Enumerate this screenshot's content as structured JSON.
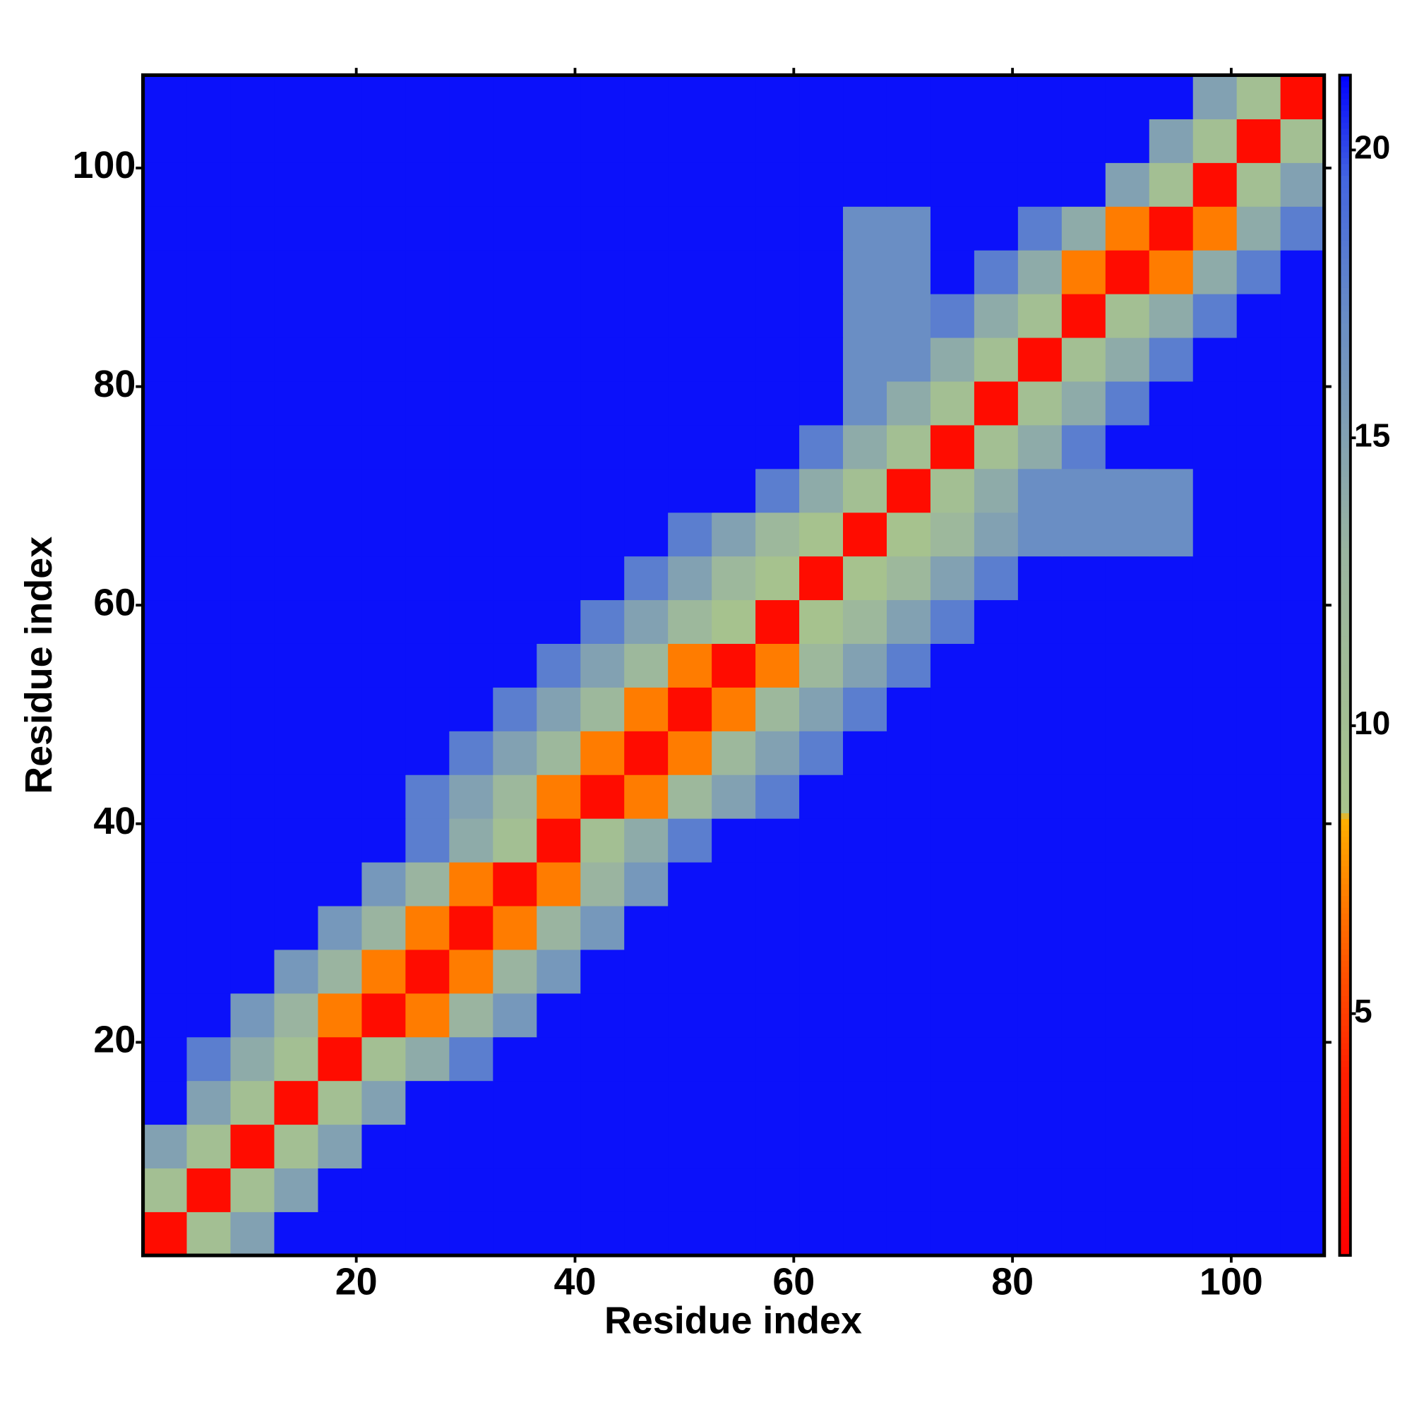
{
  "chart_data": {
    "type": "heatmap",
    "x_label": "Residue index",
    "y_label": "Residue index",
    "x": [
      2.5,
      6.5,
      10.5,
      14.5,
      18.5,
      22.5,
      26.5,
      30.5,
      34.5,
      38.5,
      42.5,
      46.5,
      50.5,
      54.5,
      58.5,
      62.5,
      66.5,
      70.5,
      74.5,
      78.5,
      82.5,
      86.5,
      90.5,
      94.5,
      98.5,
      102.5,
      106.5
    ],
    "y": [
      2.5,
      6.5,
      10.5,
      14.5,
      18.5,
      22.5,
      26.5,
      30.5,
      34.5,
      38.5,
      42.5,
      46.5,
      50.5,
      54.5,
      58.5,
      62.5,
      66.5,
      70.5,
      74.5,
      78.5,
      82.5,
      86.5,
      90.5,
      94.5,
      98.5,
      102.5,
      106.5
    ],
    "z": [
      [
        2,
        10,
        15,
        21,
        21,
        21,
        21,
        21,
        21,
        21,
        21,
        21,
        21,
        21,
        21,
        21,
        21,
        21,
        21,
        21,
        21,
        21,
        21,
        21,
        21,
        21,
        21
      ],
      [
        10,
        2,
        10,
        15,
        21,
        21,
        21,
        21,
        21,
        21,
        21,
        21,
        21,
        21,
        21,
        21,
        21,
        21,
        21,
        21,
        21,
        21,
        21,
        21,
        21,
        21,
        21
      ],
      [
        15,
        10,
        2,
        10,
        15,
        21,
        21,
        21,
        21,
        21,
        21,
        21,
        21,
        21,
        21,
        21,
        21,
        21,
        21,
        21,
        21,
        21,
        21,
        21,
        21,
        21,
        21
      ],
      [
        21,
        15,
        10,
        2,
        10,
        15,
        21,
        21,
        21,
        21,
        21,
        21,
        21,
        21,
        21,
        21,
        21,
        21,
        21,
        21,
        21,
        21,
        21,
        21,
        21,
        21,
        21
      ],
      [
        21,
        18,
        14,
        10,
        2,
        10,
        14,
        18,
        21,
        21,
        21,
        21,
        21,
        21,
        21,
        21,
        21,
        21,
        21,
        21,
        21,
        21,
        21,
        21,
        21,
        21,
        21
      ],
      [
        21,
        21,
        16,
        13,
        7,
        2,
        7,
        13,
        16,
        21,
        21,
        21,
        21,
        21,
        21,
        21,
        21,
        21,
        21,
        21,
        21,
        21,
        21,
        21,
        21,
        21,
        21
      ],
      [
        21,
        21,
        21,
        16,
        13,
        7,
        2,
        7,
        13,
        16,
        21,
        21,
        21,
        21,
        21,
        21,
        21,
        21,
        21,
        21,
        21,
        21,
        21,
        21,
        21,
        21,
        21
      ],
      [
        21,
        21,
        21,
        21,
        16,
        13,
        7,
        2,
        7,
        13,
        16,
        21,
        21,
        21,
        21,
        21,
        21,
        21,
        21,
        21,
        21,
        21,
        21,
        21,
        21,
        21,
        21
      ],
      [
        21,
        21,
        21,
        21,
        21,
        16,
        13,
        7,
        2,
        7,
        13,
        16,
        21,
        21,
        21,
        21,
        21,
        21,
        21,
        21,
        21,
        21,
        21,
        21,
        21,
        21,
        21
      ],
      [
        21,
        21,
        21,
        21,
        21,
        21,
        18,
        14,
        10,
        2,
        10,
        14,
        18,
        21,
        21,
        21,
        21,
        21,
        21,
        21,
        21,
        21,
        21,
        21,
        21,
        21,
        21
      ],
      [
        21,
        21,
        21,
        21,
        21,
        21,
        18,
        15,
        12,
        7,
        2,
        7,
        12,
        15,
        18,
        21,
        21,
        21,
        21,
        21,
        21,
        21,
        21,
        21,
        21,
        21,
        21
      ],
      [
        21,
        21,
        21,
        21,
        21,
        21,
        21,
        18,
        15,
        12,
        7,
        2,
        7,
        12,
        15,
        18,
        21,
        21,
        21,
        21,
        21,
        21,
        21,
        21,
        21,
        21,
        21
      ],
      [
        21,
        21,
        21,
        21,
        21,
        21,
        21,
        21,
        18,
        15,
        12,
        7,
        2,
        7,
        12,
        15,
        18,
        21,
        21,
        21,
        21,
        21,
        21,
        21,
        21,
        21,
        21
      ],
      [
        21,
        21,
        21,
        21,
        21,
        21,
        21,
        21,
        21,
        18,
        15,
        12,
        7,
        2,
        7,
        12,
        15,
        18,
        21,
        21,
        21,
        21,
        21,
        21,
        21,
        21,
        21
      ],
      [
        21,
        21,
        21,
        21,
        21,
        21,
        21,
        21,
        21,
        21,
        18,
        15,
        12,
        9,
        2,
        9,
        12,
        15,
        18,
        21,
        21,
        21,
        21,
        21,
        21,
        21,
        21
      ],
      [
        21,
        21,
        21,
        21,
        21,
        21,
        21,
        21,
        21,
        21,
        21,
        18,
        15,
        12,
        9,
        2,
        9,
        12,
        15,
        18,
        21,
        21,
        21,
        21,
        21,
        21,
        21
      ],
      [
        21,
        21,
        21,
        21,
        21,
        21,
        21,
        21,
        21,
        21,
        21,
        21,
        18,
        15,
        12,
        9,
        2,
        9,
        12,
        15,
        17,
        17,
        17,
        17,
        21,
        21,
        21
      ],
      [
        21,
        21,
        21,
        21,
        21,
        21,
        21,
        21,
        21,
        21,
        21,
        21,
        21,
        21,
        18,
        14,
        10,
        2,
        10,
        14,
        17,
        17,
        17,
        17,
        21,
        21,
        21
      ],
      [
        21,
        21,
        21,
        21,
        21,
        21,
        21,
        21,
        21,
        21,
        21,
        21,
        21,
        21,
        21,
        18,
        14,
        10,
        2,
        10,
        14,
        18,
        21,
        21,
        21,
        21,
        21
      ],
      [
        21,
        21,
        21,
        21,
        21,
        21,
        21,
        21,
        21,
        21,
        21,
        21,
        21,
        21,
        21,
        21,
        17,
        14,
        10,
        2,
        10,
        14,
        18,
        21,
        21,
        21,
        21
      ],
      [
        21,
        21,
        21,
        21,
        21,
        21,
        21,
        21,
        21,
        21,
        21,
        21,
        21,
        21,
        21,
        21,
        17,
        17,
        14,
        10,
        2,
        10,
        14,
        18,
        21,
        21,
        21
      ],
      [
        21,
        21,
        21,
        21,
        21,
        21,
        21,
        21,
        21,
        21,
        21,
        21,
        21,
        21,
        21,
        21,
        17,
        17,
        18,
        14,
        10,
        2,
        10,
        14,
        18,
        21,
        21
      ],
      [
        21,
        21,
        21,
        21,
        21,
        21,
        21,
        21,
        21,
        21,
        21,
        21,
        21,
        21,
        21,
        21,
        17,
        17,
        21,
        18,
        14,
        7,
        2,
        7,
        14,
        18,
        21
      ],
      [
        21,
        21,
        21,
        21,
        21,
        21,
        21,
        21,
        21,
        21,
        21,
        21,
        21,
        21,
        21,
        21,
        17,
        17,
        21,
        21,
        18,
        14,
        7,
        2,
        7,
        14,
        18
      ],
      [
        21,
        21,
        21,
        21,
        21,
        21,
        21,
        21,
        21,
        21,
        21,
        21,
        21,
        21,
        21,
        21,
        21,
        21,
        21,
        21,
        21,
        21,
        15,
        10,
        2,
        10,
        15
      ],
      [
        21,
        21,
        21,
        21,
        21,
        21,
        21,
        21,
        21,
        21,
        21,
        21,
        21,
        21,
        21,
        21,
        21,
        21,
        21,
        21,
        21,
        21,
        21,
        15,
        10,
        2,
        10
      ],
      [
        21,
        21,
        21,
        21,
        21,
        21,
        21,
        21,
        21,
        21,
        21,
        21,
        21,
        21,
        21,
        21,
        21,
        21,
        21,
        21,
        21,
        21,
        21,
        21,
        15,
        10,
        2
      ]
    ],
    "xlim": [
      0.5,
      108.5
    ],
    "ylim": [
      0.5,
      108.5
    ],
    "xticks": [
      20,
      40,
      60,
      80,
      100
    ],
    "yticks": [
      20,
      40,
      60,
      80,
      100
    ],
    "zlim": [
      0.8,
      21.3
    ],
    "zticks": [
      5,
      10,
      15,
      20
    ],
    "colorscale": [
      [
        0.8,
        "#ff0000"
      ],
      [
        4,
        "#ff2000"
      ],
      [
        6.5,
        "#ff6a00"
      ],
      [
        8.4,
        "#ffb000"
      ],
      [
        8.5,
        "#a8c48c"
      ],
      [
        13,
        "#9ab4a0"
      ],
      [
        17,
        "#6a8ec4"
      ],
      [
        19.5,
        "#4466e0"
      ],
      [
        21.3,
        "#0000ff"
      ]
    ]
  }
}
